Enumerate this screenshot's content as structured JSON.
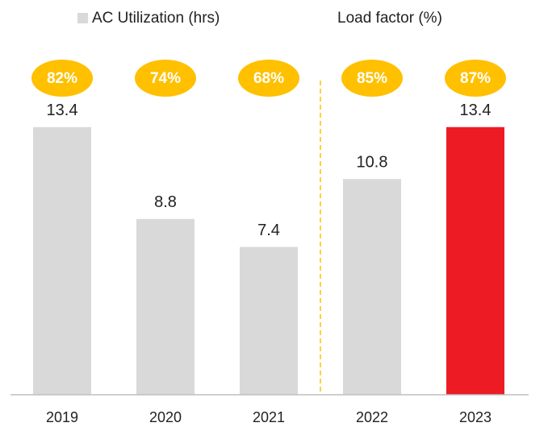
{
  "chart_data": {
    "type": "bar",
    "categories": [
      "2019",
      "2020",
      "2021",
      "2022",
      "2023"
    ],
    "series": [
      {
        "name": "AC Utilization (hrs)",
        "color": "#d9d9d9",
        "colors": [
          "#d9d9d9",
          "#d9d9d9",
          "#d9d9d9",
          "#d9d9d9",
          "#ed1c24"
        ],
        "values": [
          13.4,
          8.8,
          7.4,
          10.8,
          13.4
        ]
      },
      {
        "name": "Load factor (%)",
        "color": "#ffc000",
        "values": [
          82,
          74,
          68,
          85,
          87
        ],
        "value_labels": [
          "82%",
          "74%",
          "68%",
          "85%",
          "87%"
        ]
      }
    ],
    "ylim": [
      0,
      14.6
    ]
  }
}
